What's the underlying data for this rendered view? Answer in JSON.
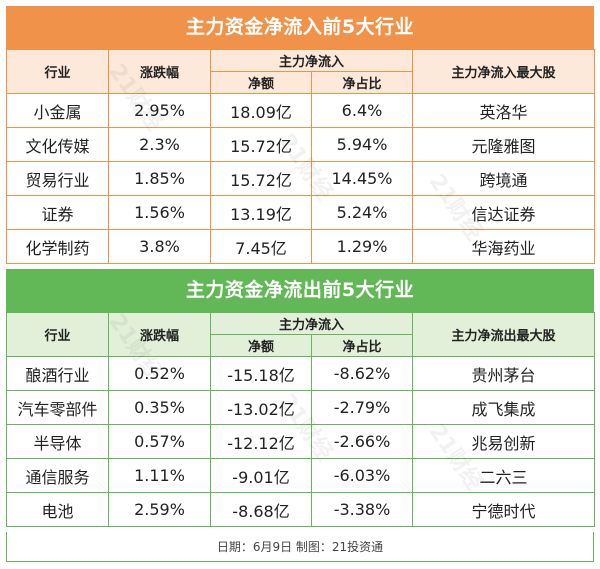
{
  "inflow": {
    "title": "主力资金净流入前5大行业",
    "headers": {
      "industry": "行业",
      "change": "涨跌幅",
      "main_net": "主力净流入",
      "net_amount": "净额",
      "net_ratio": "净占比",
      "top_stock": "主力净流入最大股"
    },
    "rows": [
      {
        "industry": "小金属",
        "change": "2.95%",
        "net_amount": "18.09亿",
        "net_ratio": "6.4%",
        "top_stock": "英洛华"
      },
      {
        "industry": "文化传媒",
        "change": "2.3%",
        "net_amount": "15.72亿",
        "net_ratio": "5.94%",
        "top_stock": "元隆雅图"
      },
      {
        "industry": "贸易行业",
        "change": "1.85%",
        "net_amount": "15.72亿",
        "net_ratio": "14.45%",
        "top_stock": "跨境通"
      },
      {
        "industry": "证券",
        "change": "1.56%",
        "net_amount": "13.19亿",
        "net_ratio": "5.24%",
        "top_stock": "信达证券"
      },
      {
        "industry": "化学制药",
        "change": "3.8%",
        "net_amount": "7.45亿",
        "net_ratio": "1.29%",
        "top_stock": "华海药业"
      }
    ]
  },
  "outflow": {
    "title": "主力资金净流出前5大行业",
    "headers": {
      "industry": "行业",
      "change": "涨跌幅",
      "main_net": "主力净流入",
      "net_amount": "净额",
      "net_ratio": "净占比",
      "top_stock": "主力净流出最大股"
    },
    "rows": [
      {
        "industry": "酿酒行业",
        "change": "0.52%",
        "net_amount": "-15.18亿",
        "net_ratio": "-8.62%",
        "top_stock": "贵州茅台"
      },
      {
        "industry": "汽车零部件",
        "change": "0.35%",
        "net_amount": "-13.02亿",
        "net_ratio": "-2.79%",
        "top_stock": "成飞集成"
      },
      {
        "industry": "半导体",
        "change": "0.57%",
        "net_amount": "-12.12亿",
        "net_ratio": "-2.66%",
        "top_stock": "兆易创新"
      },
      {
        "industry": "通信服务",
        "change": "1.11%",
        "net_amount": "-9.01亿",
        "net_ratio": "-6.03%",
        "top_stock": "二六三"
      },
      {
        "industry": "电池",
        "change": "2.59%",
        "net_amount": "-8.68亿",
        "net_ratio": "-3.38%",
        "top_stock": "宁德时代"
      }
    ]
  },
  "footer": "日期：6月9日 制图：21投资通",
  "watermark": "21财经",
  "colors": {
    "inflow_accent": "#f0924a",
    "inflow_header_bg": "#fde9d9",
    "outflow_accent": "#62b856",
    "outflow_header_bg": "#e2f0d9"
  }
}
